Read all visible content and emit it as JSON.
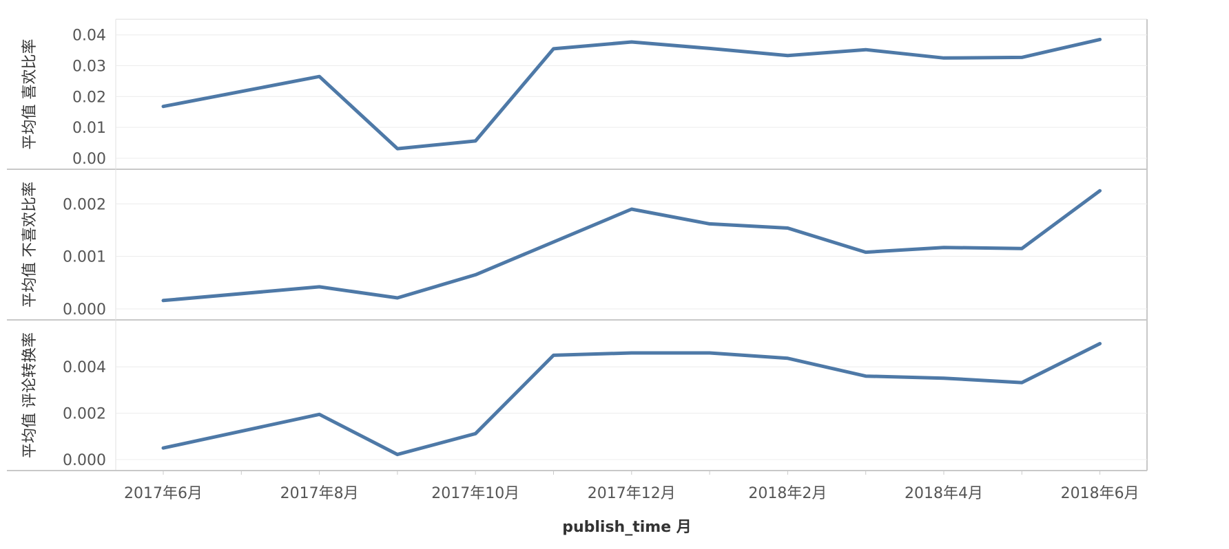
{
  "chart_data": {
    "type": "line",
    "xlabel": "publish_time 月",
    "x": [
      "2017-06",
      "2017-07",
      "2017-08",
      "2017-09",
      "2017-10",
      "2017-11",
      "2017-12",
      "2018-01",
      "2018-02",
      "2018-03",
      "2018-04",
      "2018-05",
      "2018-06"
    ],
    "x_tick_labels": [
      "2017年6月",
      "2017年8月",
      "2017年10月",
      "2017年12月",
      "2018年2月",
      "2018年4月",
      "2018年6月"
    ],
    "x_tick_values": [
      "2017-06",
      "2017-08",
      "2017-10",
      "2017-12",
      "2018-02",
      "2018-04",
      "2018-06"
    ],
    "line_color": "#4e79a7",
    "grid": true,
    "panels": [
      {
        "ylabel": "平均值 喜欢比率",
        "ylim": [
          0,
          0.0415
        ],
        "yticks": [
          0.0,
          0.01,
          0.02,
          0.03,
          0.04
        ],
        "ytick_labels": [
          "0.00",
          "0.01",
          "0.02",
          "0.03",
          "0.04"
        ],
        "values": [
          0.0168,
          null,
          0.0265,
          0.0031,
          0.0056,
          0.0355,
          0.0377,
          0.0356,
          0.0333,
          0.0352,
          0.0325,
          0.0327,
          0.0385
        ]
      },
      {
        "ylabel": "平均值 不喜欢比率",
        "ylim": [
          0,
          0.00245
        ],
        "yticks": [
          0.0,
          0.001,
          0.002
        ],
        "ytick_labels": [
          "0.000",
          "0.001",
          "0.002"
        ],
        "values": [
          0.00016,
          null,
          0.00042,
          0.00021,
          0.00065,
          null,
          0.0019,
          0.00162,
          0.00154,
          0.00108,
          0.00117,
          0.00115,
          0.00225
        ]
      },
      {
        "ylabel": "平均值 评论转换率",
        "ylim": [
          0,
          0.00555
        ],
        "yticks": [
          0.0,
          0.002,
          0.004
        ],
        "ytick_labels": [
          "0.000",
          "0.002",
          "0.004"
        ],
        "values": [
          0.0005,
          null,
          0.00195,
          0.00022,
          0.00112,
          0.0045,
          0.0046,
          0.0046,
          0.00437,
          0.0036,
          0.00351,
          0.00332,
          0.005
        ]
      }
    ]
  }
}
